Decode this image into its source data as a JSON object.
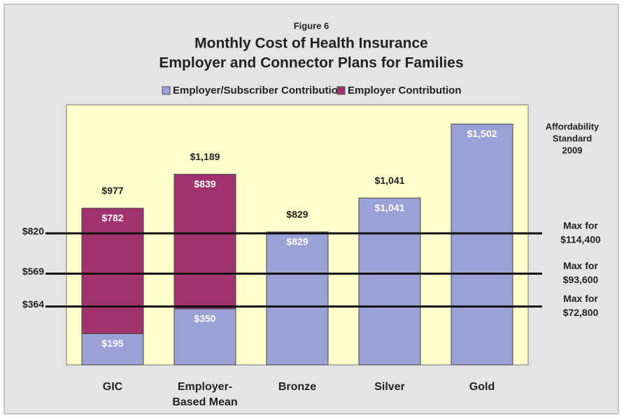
{
  "chart_data": {
    "type": "stacked_bar",
    "figure_label": "Figure 6",
    "title": "Monthly Cost of Health Insurance",
    "subtitle": "Employer and Connector Plans for Families",
    "categories": [
      "GIC",
      "Employer-Based Mean",
      "Bronze",
      "Silver",
      "Gold"
    ],
    "series": [
      {
        "name": "Employer/Subscriber Contribution",
        "color": "#9aa1d4",
        "values": [
          195,
          350,
          829,
          1041,
          1502
        ],
        "value_labels": [
          "$195",
          "$350",
          "$829",
          "$1,041",
          "$1,502"
        ]
      },
      {
        "name": "Employer Contribution",
        "color": "#a0336e",
        "values": [
          782,
          839,
          null,
          null,
          null
        ],
        "value_labels": [
          "$782",
          "$839",
          null,
          null,
          null
        ]
      }
    ],
    "totals": [
      977,
      1189,
      829,
      1041,
      null
    ],
    "total_labels": [
      "$977",
      "$1,189",
      "$829",
      "$1,041",
      null
    ],
    "ylim": [
      0,
      1600
    ],
    "reference_lines": [
      {
        "value": 820,
        "label": "$820",
        "note": [
          "Max for",
          "$114,400"
        ]
      },
      {
        "value": 569,
        "label": "$569",
        "note": [
          "Max for",
          "$93,600"
        ]
      },
      {
        "value": 364,
        "label": "$364",
        "note": [
          "Max for",
          "$72,800"
        ]
      }
    ],
    "annotation": [
      "Affordability",
      "Standard",
      "2009"
    ],
    "legend": "top"
  }
}
